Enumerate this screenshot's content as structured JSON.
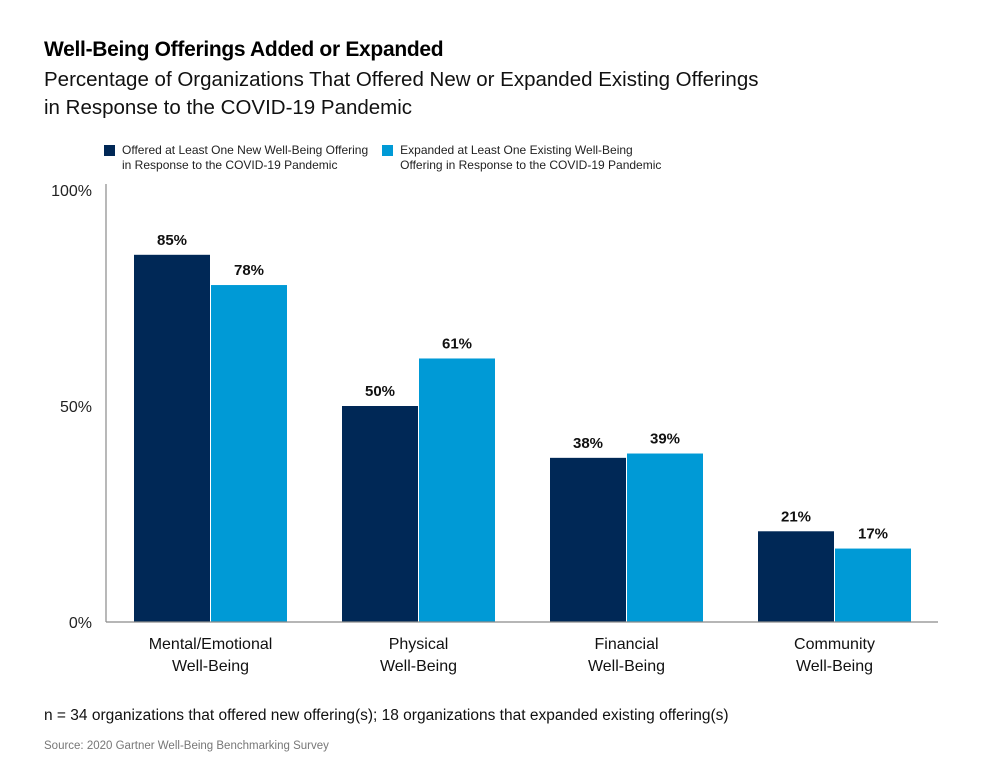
{
  "chart_data": {
    "type": "bar",
    "title": "Well-Being Offerings Added or Expanded",
    "subtitle": "Percentage of Organizations That Offered New or Expanded Existing Offerings in Response to the COVID-19 Pandemic",
    "categories": [
      [
        "Mental/Emotional",
        "Well-Being"
      ],
      [
        "Physical",
        "Well-Being"
      ],
      [
        "Financial",
        "Well-Being"
      ],
      [
        "Community",
        "Well-Being"
      ]
    ],
    "series": [
      {
        "name": "Offered at Least One New Well-Being Offering in Response to the COVID-19 Pandemic",
        "legend_lines": [
          "Offered at Least One New Well-Being Offering",
          "in Response to the COVID-19 Pandemic"
        ],
        "color": "#002856",
        "values": [
          85,
          50,
          38,
          21
        ],
        "labels": [
          "85%",
          "50%",
          "38%",
          "21%"
        ]
      },
      {
        "name": "Expanded at Least One Existing Well-Being Offering in Response to the COVID-19 Pandemic",
        "legend_lines": [
          "Expanded at Least One Existing Well-Being",
          "Offering in Response to the COVID-19 Pandemic"
        ],
        "color": "#009ad6",
        "values": [
          78,
          61,
          39,
          17
        ],
        "labels": [
          "78%",
          "61%",
          "39%",
          "17%"
        ]
      }
    ],
    "yticks": [
      0,
      50,
      100
    ],
    "ytick_labels": [
      "0%",
      "50%",
      "100%"
    ],
    "ylim": [
      0,
      100
    ],
    "xlabel": "",
    "ylabel": "",
    "grid": false,
    "legend_position": "top-left"
  },
  "footnote": "n = 34 organizations that offered new offering(s); 18 organizations that expanded existing offering(s)",
  "source": "Source: 2020 Gartner Well-Being Benchmarking Survey",
  "subtitle_lines": [
    "Percentage of Organizations That Offered New or Expanded Existing Offerings",
    "in Response to the COVID-19 Pandemic"
  ]
}
